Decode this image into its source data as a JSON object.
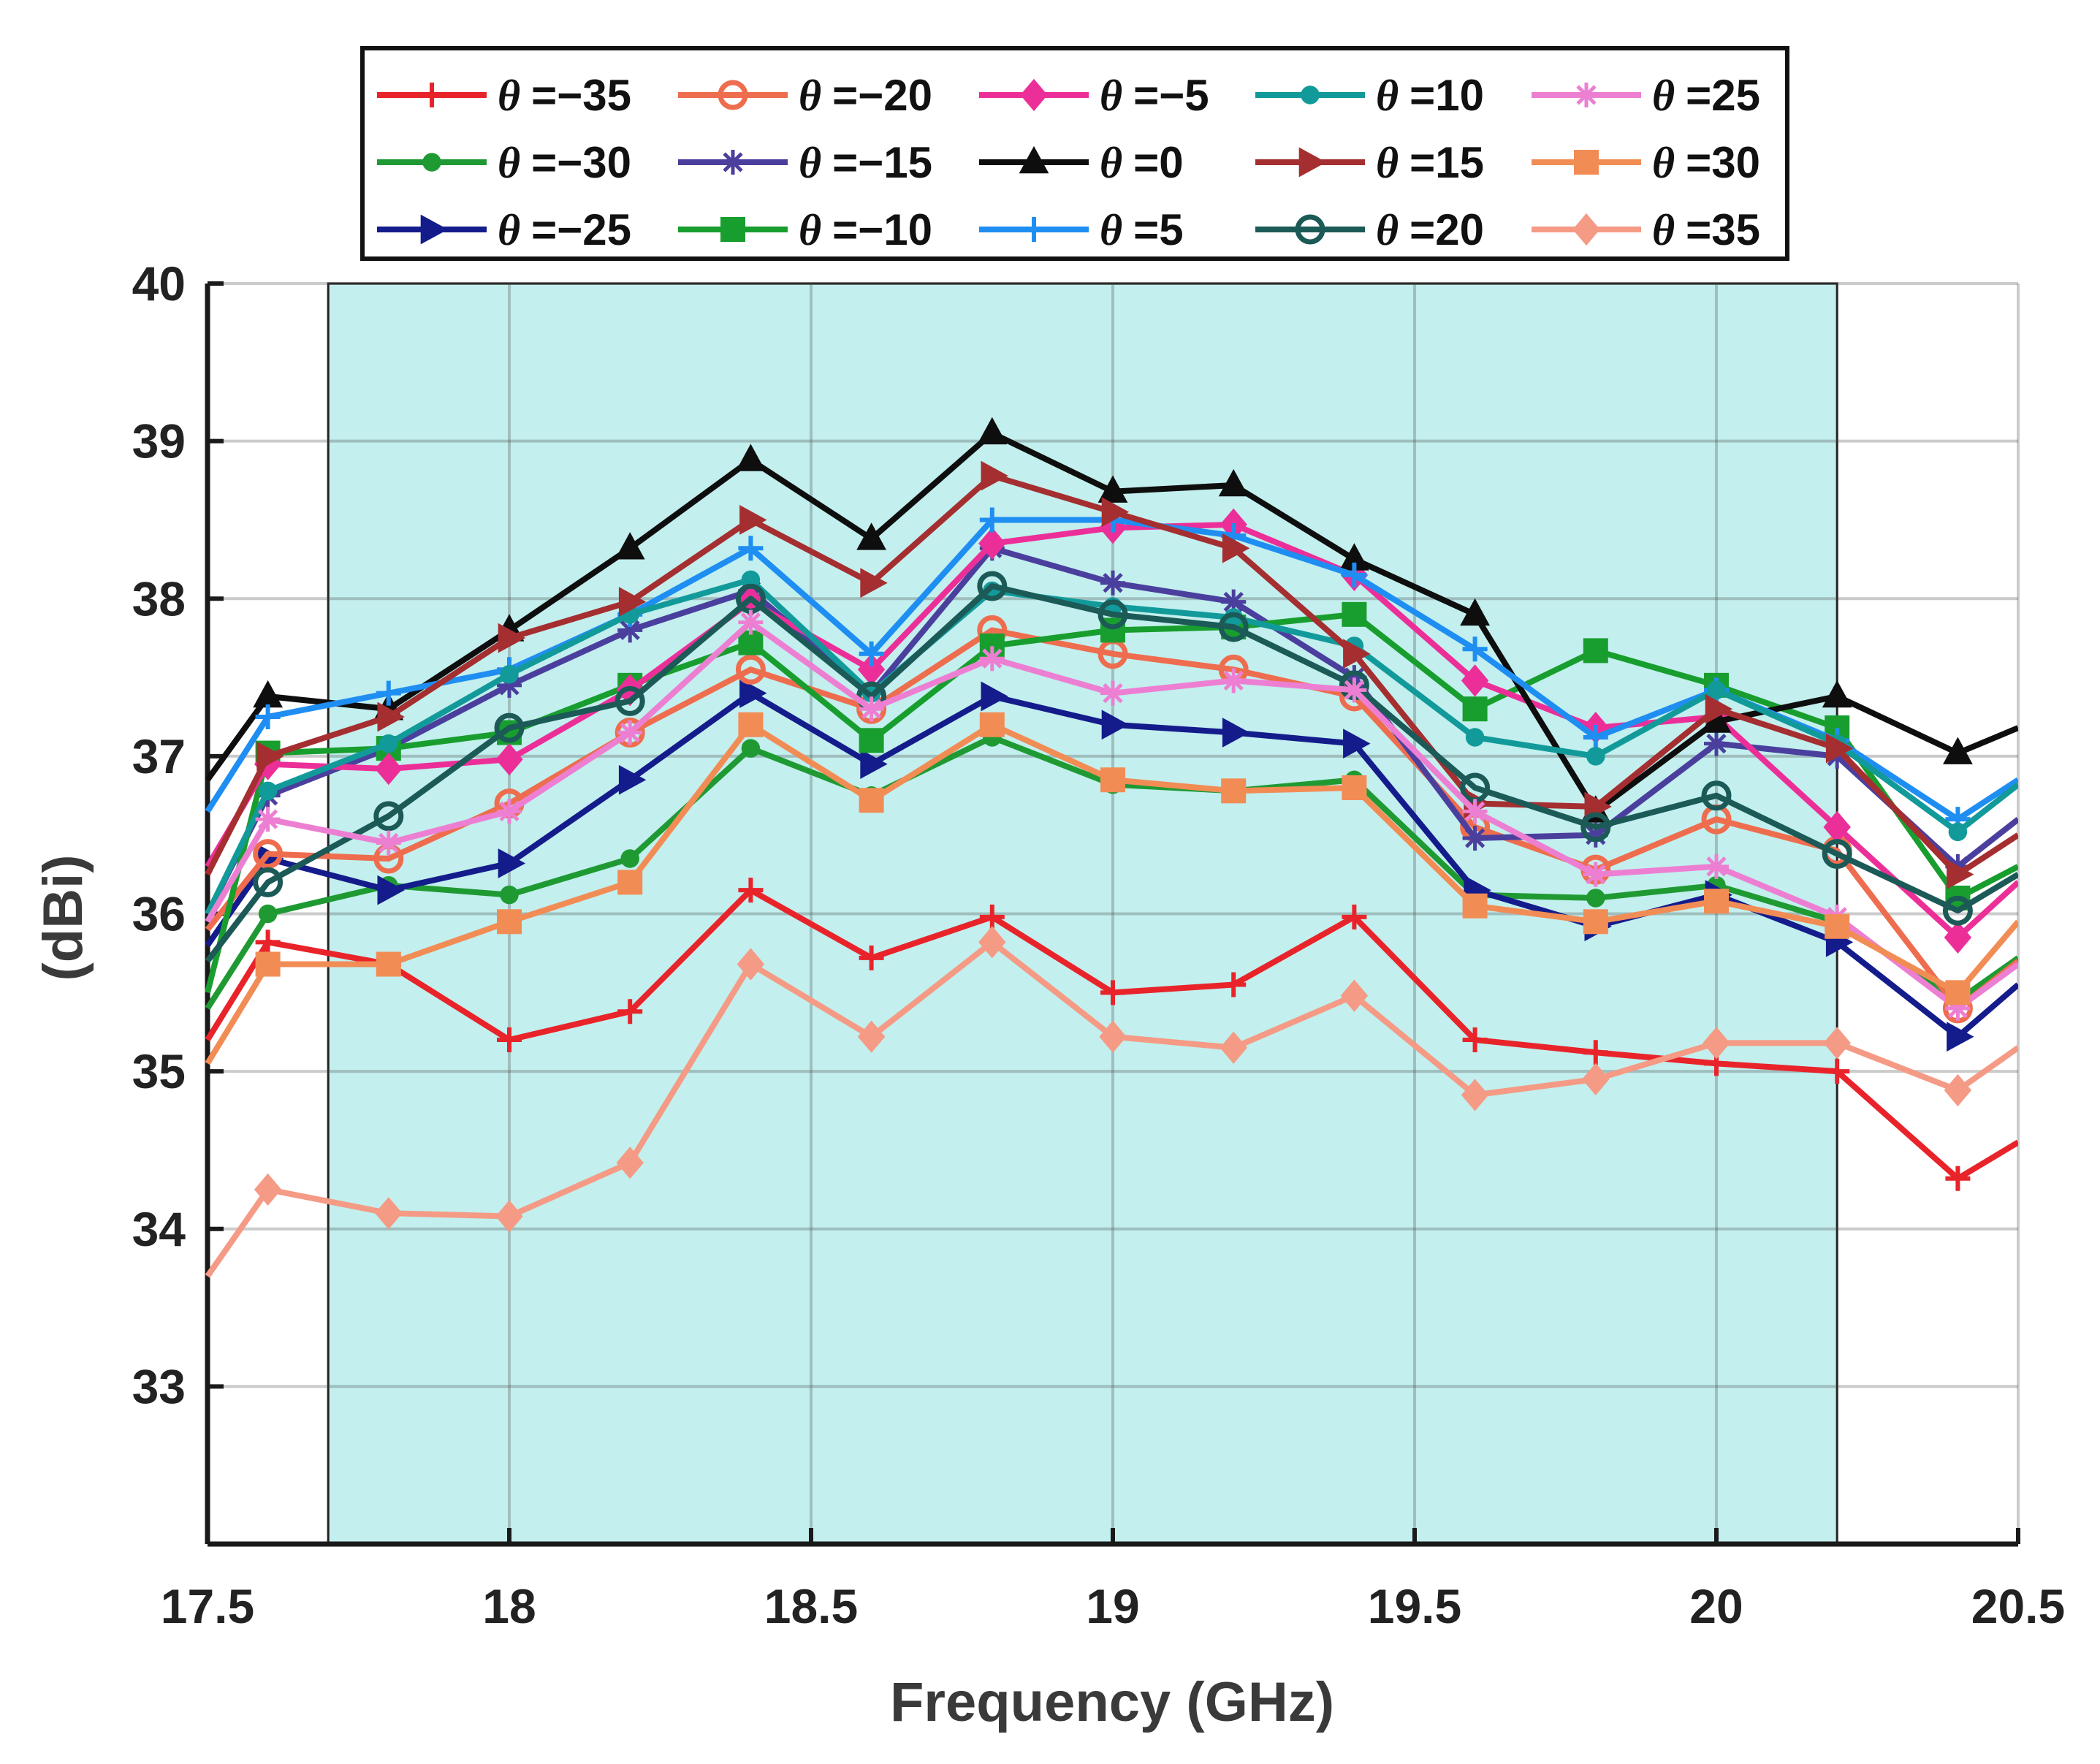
{
  "chart_data": {
    "type": "line",
    "title": "",
    "xlabel": "Frequency (GHz)",
    "ylabel": "(dBi)",
    "xlim": [
      17.5,
      20.5
    ],
    "ylim": [
      32,
      40
    ],
    "xticks": [
      17.5,
      18,
      18.5,
      19,
      19.5,
      20,
      20.5
    ],
    "xtick_labels": [
      "17.5",
      "18",
      "18.5",
      "19",
      "19.5",
      "20",
      "20.5"
    ],
    "yticks": [
      33,
      34,
      35,
      36,
      37,
      38,
      39,
      40
    ],
    "ytick_labels": [
      "33",
      "34",
      "35",
      "36",
      "37",
      "38",
      "39",
      "40"
    ],
    "grid": true,
    "shaded_band": {
      "x_start": 17.7,
      "x_end": 20.2,
      "color": "#c3efee"
    },
    "legend_position": "top",
    "legend_prefix": "θ",
    "x": [
      17.5,
      17.6,
      17.8,
      18.0,
      18.2,
      18.4,
      18.6,
      18.8,
      19.0,
      19.2,
      19.4,
      19.6,
      19.8,
      20.0,
      20.2,
      20.4,
      20.5
    ],
    "series": [
      {
        "name": "=−35",
        "color": "#e8242a",
        "marker": "plus",
        "values": [
          35.2,
          35.82,
          35.68,
          35.2,
          35.38,
          36.15,
          35.72,
          35.98,
          35.5,
          35.55,
          35.98,
          35.2,
          35.12,
          35.05,
          35.0,
          34.32,
          34.55
        ]
      },
      {
        "name": "=−30",
        "color": "#1f9a33",
        "marker": "dot",
        "values": [
          35.4,
          36.0,
          36.18,
          36.12,
          36.35,
          37.05,
          36.75,
          37.12,
          36.82,
          36.78,
          36.85,
          36.12,
          36.1,
          36.18,
          35.95,
          35.45,
          35.72
        ]
      },
      {
        "name": "=−25",
        "color": "#141c8c",
        "marker": "triangle-right",
        "values": [
          35.8,
          36.35,
          36.15,
          36.32,
          36.85,
          37.4,
          36.95,
          37.38,
          37.2,
          37.15,
          37.08,
          36.15,
          35.92,
          36.12,
          35.82,
          35.22,
          35.55
        ]
      },
      {
        "name": "=−20",
        "color": "#ee6d4e",
        "marker": "circle",
        "values": [
          35.9,
          36.38,
          36.35,
          36.7,
          37.15,
          37.55,
          37.3,
          37.8,
          37.65,
          37.55,
          37.38,
          36.55,
          36.28,
          36.6,
          36.4,
          35.4,
          35.7
        ]
      },
      {
        "name": "=−15",
        "color": "#4b3f9e",
        "marker": "star",
        "values": [
          36.0,
          36.75,
          37.05,
          37.45,
          37.8,
          38.05,
          37.4,
          38.32,
          38.1,
          37.98,
          37.5,
          36.48,
          36.5,
          37.08,
          37.0,
          36.3,
          36.6
        ]
      },
      {
        "name": "=−10",
        "color": "#189e2e",
        "marker": "square",
        "values": [
          35.5,
          37.02,
          37.05,
          37.15,
          37.45,
          37.72,
          37.1,
          37.7,
          37.8,
          37.82,
          37.9,
          37.3,
          37.67,
          37.45,
          37.18,
          36.1,
          36.3
        ]
      },
      {
        "name": "=−5",
        "color": "#ec2f98",
        "marker": "diamond",
        "values": [
          36.3,
          36.95,
          36.92,
          36.98,
          37.42,
          37.98,
          37.55,
          38.35,
          38.45,
          38.47,
          38.15,
          37.48,
          37.18,
          37.25,
          36.55,
          35.85,
          36.2
        ]
      },
      {
        "name": "=0",
        "color": "#0e0e0e",
        "marker": "triangle-up",
        "values": [
          36.85,
          37.38,
          37.3,
          37.8,
          38.32,
          38.88,
          38.38,
          39.05,
          38.68,
          38.72,
          38.25,
          37.9,
          36.65,
          37.22,
          37.38,
          37.02,
          37.18
        ]
      },
      {
        "name": "=5",
        "color": "#1f8ef2",
        "marker": "plus",
        "values": [
          36.65,
          37.25,
          37.4,
          37.55,
          37.9,
          38.32,
          37.65,
          38.5,
          38.5,
          38.4,
          38.15,
          37.68,
          37.12,
          37.42,
          37.1,
          36.6,
          36.85
        ]
      },
      {
        "name": "=10",
        "color": "#129a9b",
        "marker": "dot",
        "values": [
          36.0,
          36.78,
          37.08,
          37.52,
          37.9,
          38.12,
          37.4,
          38.05,
          37.95,
          37.88,
          37.7,
          37.12,
          37.0,
          37.42,
          37.08,
          36.52,
          36.82
        ]
      },
      {
        "name": "=15",
        "color": "#a52e30",
        "marker": "triangle-right",
        "values": [
          36.25,
          37.0,
          37.25,
          37.75,
          37.98,
          38.5,
          38.1,
          38.78,
          38.55,
          38.32,
          37.65,
          36.7,
          36.68,
          37.3,
          37.05,
          36.25,
          36.5
        ]
      },
      {
        "name": "=20",
        "color": "#1b5a57",
        "marker": "circle",
        "values": [
          35.7,
          36.2,
          36.62,
          37.18,
          37.35,
          38.0,
          37.38,
          38.08,
          37.9,
          37.82,
          37.45,
          36.8,
          36.55,
          36.75,
          36.38,
          36.02,
          36.25
        ]
      },
      {
        "name": "=25",
        "color": "#ed7fd3",
        "marker": "star",
        "values": [
          35.95,
          36.6,
          36.45,
          36.65,
          37.15,
          37.85,
          37.3,
          37.62,
          37.4,
          37.48,
          37.42,
          36.65,
          36.25,
          36.3,
          35.98,
          35.4,
          35.68
        ]
      },
      {
        "name": "=30",
        "color": "#f28c55",
        "marker": "square",
        "values": [
          35.05,
          35.68,
          35.68,
          35.95,
          36.2,
          37.2,
          36.72,
          37.2,
          36.85,
          36.78,
          36.8,
          36.05,
          35.95,
          36.08,
          35.92,
          35.5,
          35.95
        ]
      },
      {
        "name": "=35",
        "color": "#f59a84",
        "marker": "diamond",
        "values": [
          33.7,
          34.25,
          34.1,
          34.08,
          34.42,
          35.68,
          35.22,
          35.82,
          35.22,
          35.15,
          35.48,
          34.85,
          34.95,
          35.18,
          35.18,
          34.88,
          35.15
        ]
      }
    ]
  }
}
